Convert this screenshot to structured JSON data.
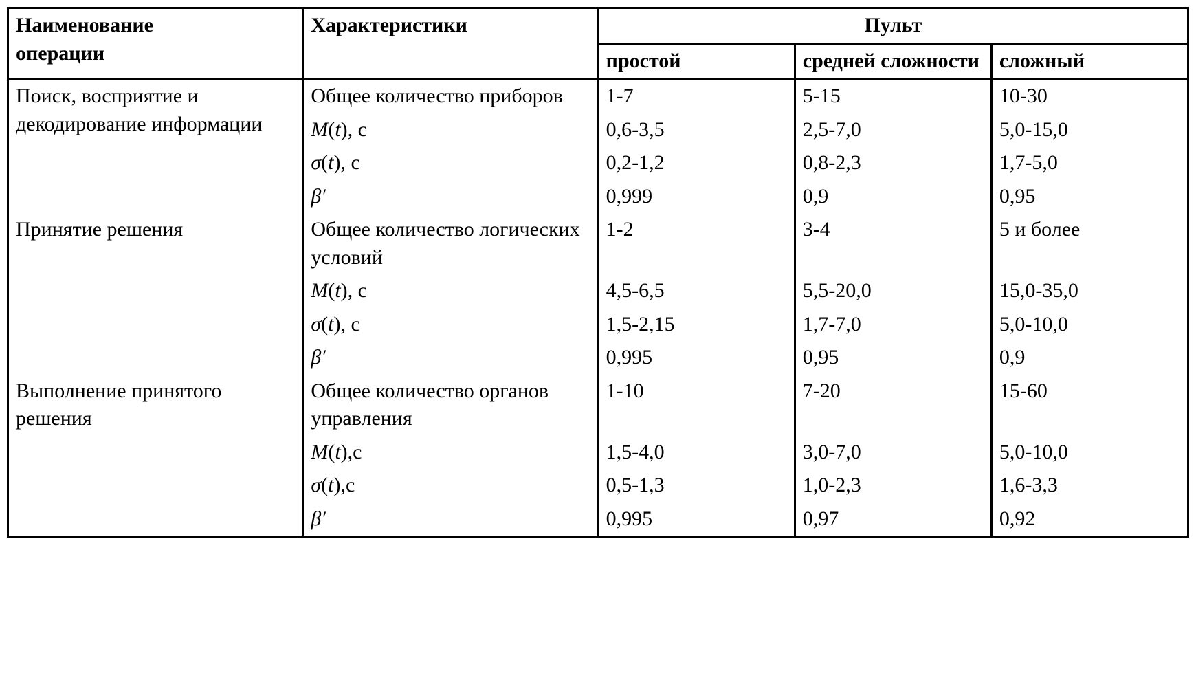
{
  "table": {
    "type": "table",
    "border_color": "#000000",
    "background_color": "#ffffff",
    "text_color": "#000000",
    "font_family": "Times New Roman",
    "base_fontsize_pt": 22,
    "column_widths_pct": [
      25,
      25,
      16.66,
      16.66,
      16.66
    ],
    "header": {
      "col1_line1": "Наименование",
      "col1_line2": "операции",
      "col2": "Характеристики",
      "group": "Пульт",
      "sub1": "простой",
      "sub2": "средней сложности",
      "sub3": "сложный"
    },
    "sections": [
      {
        "operation": "Поиск, восприятие и декодирование информации",
        "characteristics": [
          {
            "label_html": "Общее количество приборов",
            "v1": "1-7",
            "v2": "5-15",
            "v3": "10-30"
          },
          {
            "label_html": "<span class='italic-var'>M</span>(<span class='italic-var'>t</span>), с",
            "v1": "0,6-3,5",
            "v2": "2,5-7,0",
            "v3": "5,0-15,0"
          },
          {
            "label_html": "<span class='italic-var'>σ</span>(<span class='italic-var'>t</span>), с",
            "v1": "0,2-1,2",
            "v2": "0,8-2,3",
            "v3": "1,7-5,0"
          },
          {
            "label_html": "<span class='italic-var'>β′</span>",
            "v1": "0,999",
            "v2": "0,9",
            "v3": "0,95"
          }
        ]
      },
      {
        "operation": "Принятие решения",
        "characteristics": [
          {
            "label_html": "Общее количество логических условий",
            "v1": "1-2",
            "v2": "3-4",
            "v3": "5 и более"
          },
          {
            "label_html": "<span class='italic-var'>M</span>(<span class='italic-var'>t</span>), с",
            "v1": "4,5-6,5",
            "v2": "5,5-20,0",
            "v3": "15,0-35,0"
          },
          {
            "label_html": "<span class='italic-var'>σ</span>(<span class='italic-var'>t</span>), с",
            "v1": "1,5-2,15",
            "v2": "1,7-7,0",
            "v3": "5,0-10,0"
          },
          {
            "label_html": "<span class='italic-var'>β′</span>",
            "v1": "0,995",
            "v2": "0,95",
            "v3": "0,9"
          }
        ]
      },
      {
        "operation": "Выполнение принятого решения",
        "characteristics": [
          {
            "label_html": "Общее количество органов управления",
            "v1": "1-10",
            "v2": "7-20",
            "v3": "15-60"
          },
          {
            "label_html": "<span class='italic-var'>M</span>(<span class='italic-var'>t</span>),с",
            "v1": "1,5-4,0",
            "v2": "3,0-7,0",
            "v3": "5,0-10,0"
          },
          {
            "label_html": "<span class='italic-var'>σ</span>(<span class='italic-var'>t</span>),с",
            "v1": "0,5-1,3",
            "v2": "1,0-2,3",
            "v3": "1,6-3,3"
          },
          {
            "label_html": "<span class='italic-var'>β′</span>",
            "v1": "0,995",
            "v2": "0,97",
            "v3": "0,92"
          }
        ]
      }
    ]
  }
}
